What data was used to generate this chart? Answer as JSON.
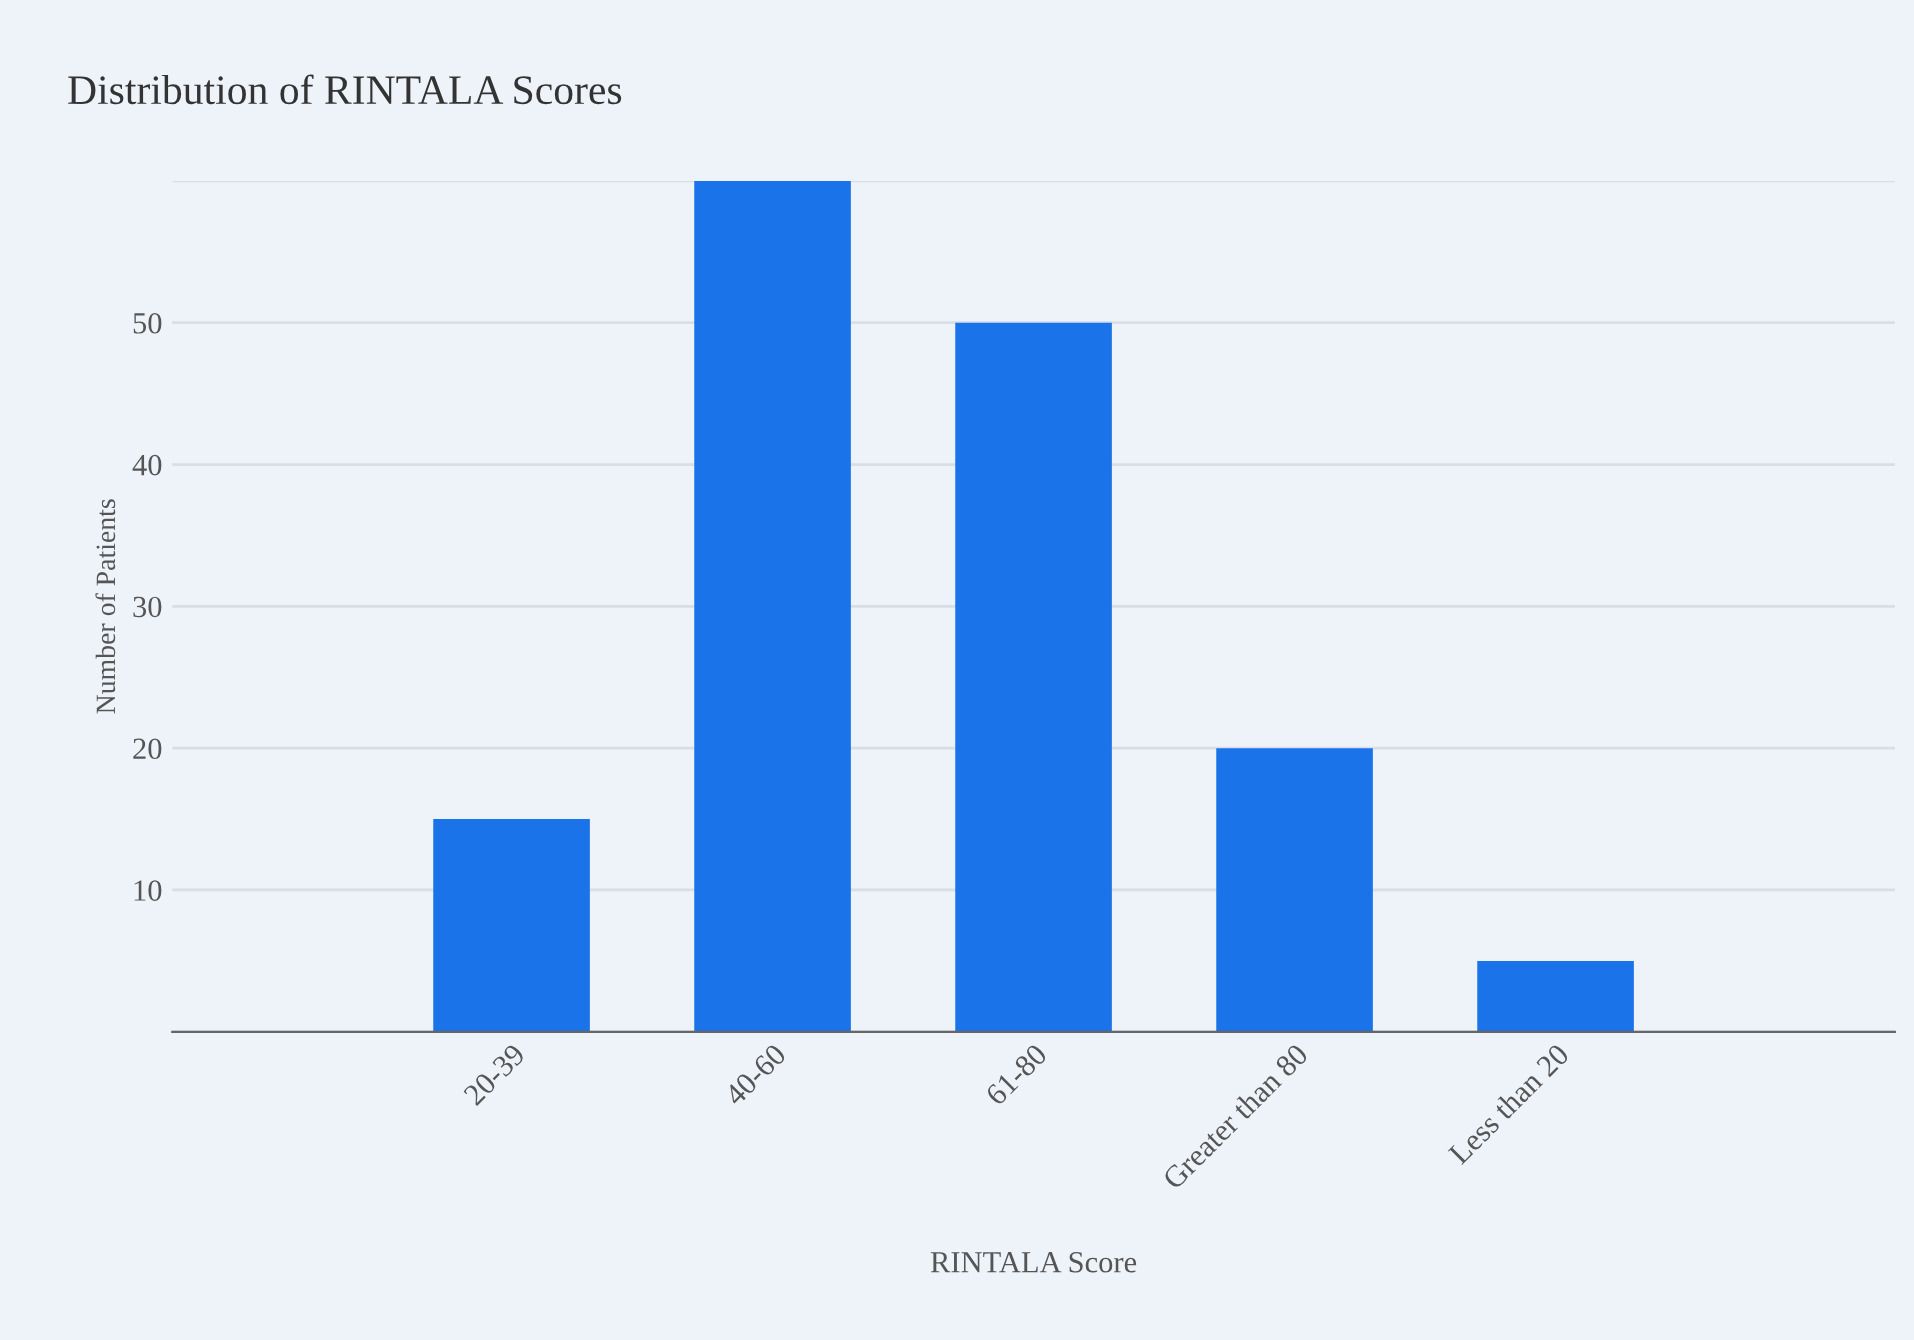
{
  "chart_data": {
    "type": "bar",
    "title": "Distribution of RINTALA Scores",
    "xlabel": "RINTALA Score",
    "ylabel": "Number of Patients",
    "categories": [
      "20-39",
      "40-60",
      "61-80",
      "Greater than 80",
      "Less than 20"
    ],
    "values": [
      15,
      60,
      50,
      20,
      5
    ],
    "color": "#1a73e8",
    "ylim": [
      0,
      60
    ],
    "yticks": [
      {
        "value": 0,
        "label": null
      },
      10,
      20,
      30,
      40,
      50,
      {
        "value": 60,
        "label": null
      }
    ],
    "grid": "y"
  }
}
